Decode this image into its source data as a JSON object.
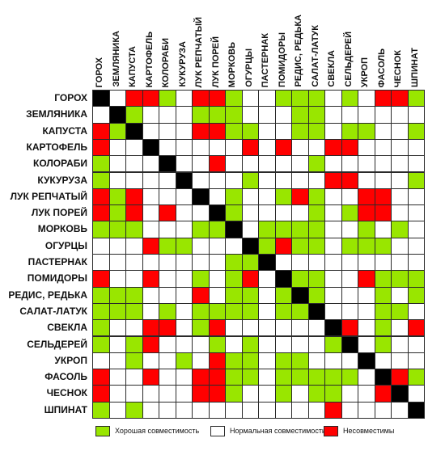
{
  "crops": [
    "ГОРОХ",
    "ЗЕМЛЯНИКА",
    "КАПУСТА",
    "КАРТОФЕЛЬ",
    "КОЛОРАБИ",
    "КУКУРУЗА",
    "ЛУК РЕПЧАТЫЙ",
    "ЛУК ПОРЕЙ",
    "МОРКОВЬ",
    "ОГУРЦЫ",
    "ПАСТЕРНАК",
    "ПОМИДОРЫ",
    "РЕДИС, РЕДЬКА",
    "САЛАТ-ЛАТУК",
    "СВЕКЛА",
    "СЕЛЬДЕРЕЙ",
    "УКРОП",
    "ФАСОЛЬ",
    "ЧЕСНОК",
    "ШПИНАТ"
  ],
  "colors": {
    "good": "#99e600",
    "neutral": "#ffffff",
    "bad": "#ff0000",
    "diagonal": "#000000"
  },
  "legend": [
    {
      "key": "good",
      "label": "Хорошая совместимость"
    },
    {
      "key": "neutral",
      "label": "Нормальная совместимость"
    },
    {
      "key": "bad",
      "label": "Несовместимы"
    }
  ],
  "matrix": [
    "XNBBGNBBGNNGGGNGNBBG",
    "NXGNNNGGGNNNGGNNNNNN",
    "BGXNNNBBGGNNGGNGGNNG",
    "BNNXNNNNNBNBNNBBNNNN",
    "GNNNXNNBNNNNNGNNNNNN",
    "GNNNNXNNNGNNNNBBNNNG",
    "BGBNNNXNGNNGBGNNBBNN",
    "BGBNBNNXGNNNNGNGBBNN",
    "GGGNNNGGXNGGGGNNGNGN",
    "NNNBGGNNNXGBGGNGGGNN",
    "NNNNNNNNGGXNNNNNNNNN",
    "BNNBNNGNGBNXGGNNBGGG",
    "GGGNNNBNGGNGXGNNNGNG",
    "GGGNGNGGGGNGGXNNNGGN",
    "GNNBBNGBNNNNNNXBNGNB",
    "GNGBNNNGNGNNNNGXNGNN",
    "NNGNNGNBGGNGGNNNXNNN",
    "BNNBNNBBGGNGGGGGNXBG",
    "BNNNNNBBGNNGNGGNNBXN",
    "GNGNNNNNNNNNNNBNNNNX"
  ]
}
